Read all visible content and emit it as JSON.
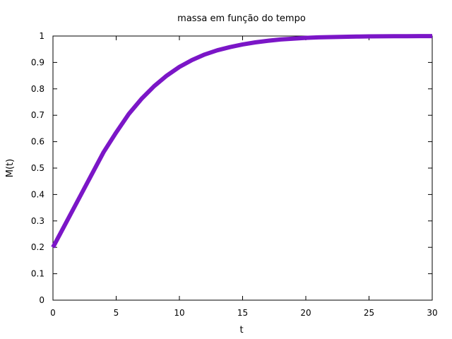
{
  "chart_data": {
    "type": "line",
    "title": "massa em função do tempo",
    "xlabel": "t",
    "ylabel": "M(t)",
    "xlim": [
      0,
      30
    ],
    "ylim": [
      0,
      1
    ],
    "x_ticks": [
      0,
      5,
      10,
      15,
      20,
      25,
      30
    ],
    "y_ticks": [
      0,
      0.1,
      0.2,
      0.3,
      0.4,
      0.5,
      0.6,
      0.7,
      0.8,
      0.9,
      1
    ],
    "x_tick_labels": [
      "0",
      "5",
      "10",
      "15",
      "20",
      "25",
      "30"
    ],
    "y_tick_labels": [
      "0",
      "0.1",
      "0.2",
      "0.3",
      "0.4",
      "0.5",
      "0.6",
      "0.7",
      "0.8",
      "0.9",
      "1"
    ],
    "grid": false,
    "legend": "none",
    "series": [
      {
        "color": "#7b16c7",
        "x": [
          0,
          1,
          2,
          3,
          4,
          5,
          6,
          7,
          8,
          9,
          10,
          11,
          12,
          13,
          14,
          15,
          16,
          17,
          18,
          19,
          20,
          21,
          22,
          23,
          24,
          25,
          26,
          27,
          28,
          29,
          30
        ],
        "y": [
          0.2,
          0.29,
          0.38,
          0.47,
          0.56,
          0.635,
          0.705,
          0.762,
          0.81,
          0.85,
          0.883,
          0.909,
          0.93,
          0.946,
          0.958,
          0.968,
          0.976,
          0.982,
          0.987,
          0.99,
          0.993,
          0.995,
          0.996,
          0.997,
          0.998,
          0.9985,
          0.999,
          0.9993,
          0.9995,
          0.9997,
          0.9998
        ]
      }
    ]
  }
}
